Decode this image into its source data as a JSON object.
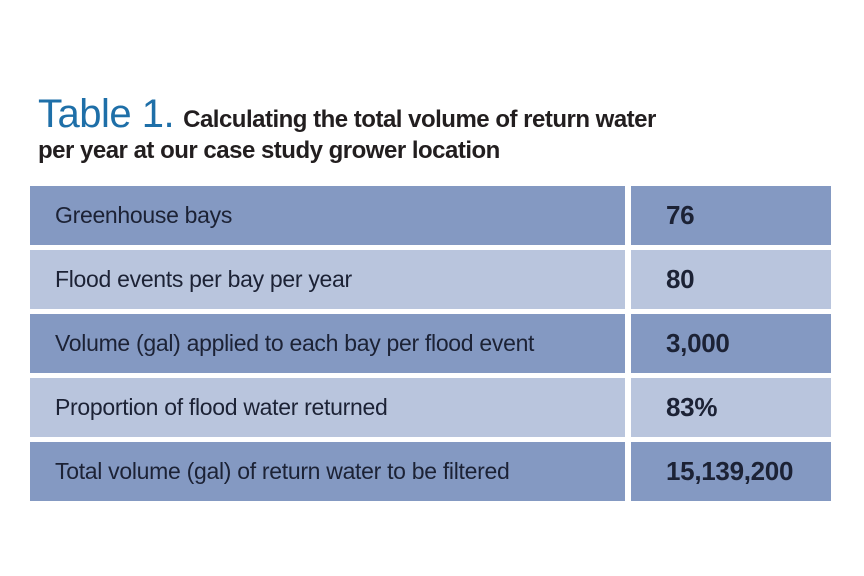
{
  "title": {
    "label": "Table 1.",
    "line1": "Calculating the total volume of return water",
    "line2": "per year at our case study grower location"
  },
  "table": {
    "rows": [
      {
        "label": "Greenhouse bays",
        "value": "76"
      },
      {
        "label": "Flood events per bay per year",
        "value": "80"
      },
      {
        "label": "Volume (gal) applied to each bay per flood event",
        "value": "3,000"
      },
      {
        "label": "Proportion of flood water returned",
        "value": "83%"
      },
      {
        "label": "Total volume (gal) of return water to be filtered",
        "value": "15,139,200"
      }
    ]
  },
  "colors": {
    "row_dark": "#8499c2",
    "row_light": "#b9c5dd",
    "title_blue": "#1e6fa8",
    "text_dark": "#1c2235",
    "divider_white": "#ffffff"
  },
  "chart_data": {
    "type": "table",
    "title": "Table 1. Calculating the total volume of return water per year at our case study grower location",
    "rows": [
      [
        "Greenhouse bays",
        "76"
      ],
      [
        "Flood events per bay per year",
        "80"
      ],
      [
        "Volume (gal) applied to each bay per flood event",
        "3,000"
      ],
      [
        "Proportion of flood water returned",
        "83%"
      ],
      [
        "Total volume (gal) of return water to be filtered",
        "15,139,200"
      ]
    ],
    "layout": {
      "columns": 2,
      "header_row": false,
      "alternating_row_colors": [
        "#8499c2",
        "#b9c5dd"
      ],
      "value_column_align": "left",
      "value_font_weight": "bold"
    }
  }
}
